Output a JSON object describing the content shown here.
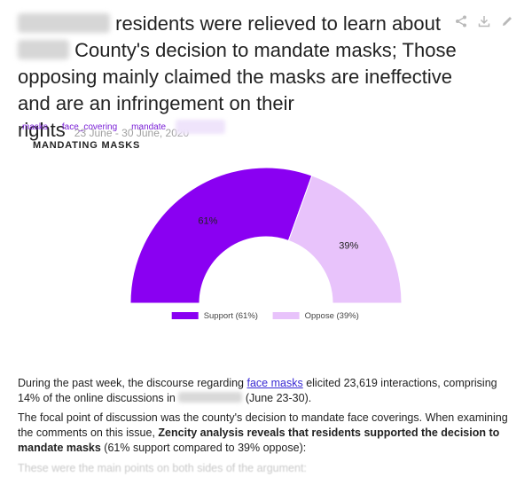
{
  "headline": {
    "part1": "residents were relieved to learn about",
    "part2": "County's decision to mandate masks; Those opposing mainly claimed the masks are ineffective and are an infringement on their rights",
    "date_range": "23 June - 30 June, 2020"
  },
  "card_actions": [
    {
      "name": "share-icon"
    },
    {
      "name": "download-icon"
    },
    {
      "name": "edit-icon"
    }
  ],
  "tags": [
    "masks",
    "face_covering",
    "mandate"
  ],
  "chart_data": {
    "type": "pie",
    "variant": "semi-donut",
    "title": "MANDATING MASKS",
    "categories": [
      "Support",
      "Oppose"
    ],
    "values": [
      61,
      39
    ],
    "value_labels": [
      "61%",
      "39%"
    ],
    "legend": [
      "Support (61%)",
      "Oppose (39%)"
    ],
    "legend_position": "bottom",
    "colors": [
      "#8a00f2",
      "#e8c3fb"
    ]
  },
  "body": {
    "p1_a": "During the past week, the discourse regarding",
    "p1_link": "face masks",
    "p1_b": "elicited 23,619 interactions, comprising 14% of the online discussions in",
    "p1_c": "(June 23-30).",
    "p2_a": "The focal point of discussion was the county's decision to mandate face coverings. When examining the comments on this issue,",
    "p2_bold": "Zencity analysis reveals that residents supported the decision to mandate masks",
    "p2_b": "(61% support compared to 39% oppose):",
    "p3": "These were the main points on both sides of the argument:"
  }
}
